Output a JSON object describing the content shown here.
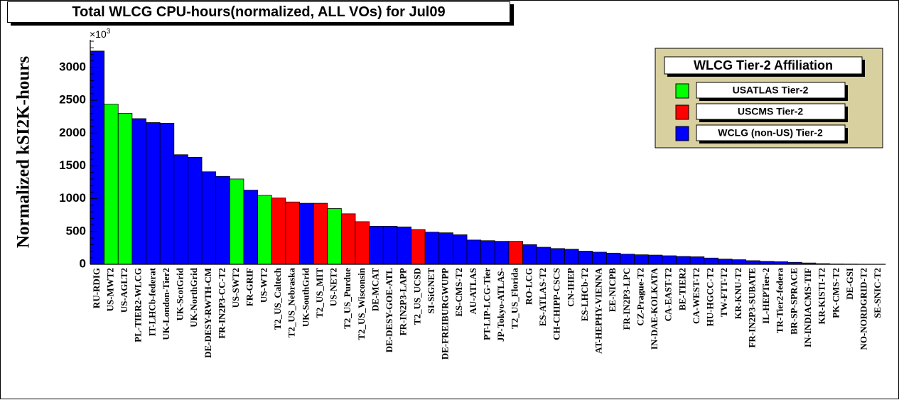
{
  "chart_data": {
    "type": "bar",
    "title": "Total WLCG CPU-hours(normalized, ALL VOs) for Jul09",
    "ylabel": "Normalized kSI2K-hours",
    "y_multiplier_base": "×10",
    "y_multiplier_exp": "3",
    "ylim": [
      0,
      3400
    ],
    "yticks": [
      0,
      500,
      1000,
      1500,
      2000,
      2500,
      3000
    ],
    "grid": false,
    "legend": {
      "title": "WLCG Tier-2 Affiliation",
      "placement": "top-right",
      "entries": [
        {
          "key": "atlas",
          "label": "USATLAS Tier-2",
          "color": "#00ff00"
        },
        {
          "key": "cms",
          "label": "USCMS Tier-2",
          "color": "#ff0000"
        },
        {
          "key": "wlcg",
          "label": "WCLG (non-US) Tier-2",
          "color": "#0000ff"
        }
      ]
    },
    "colors": {
      "atlas": "#00ff00",
      "cms": "#ff0000",
      "wlcg": "#0000ff",
      "background": "#ffffff",
      "legend_bg": "#d9d0a0"
    },
    "bars": [
      {
        "label": "RU-RDIG",
        "value": 3250,
        "group": "wlcg"
      },
      {
        "label": "US-MWT2",
        "value": 2440,
        "group": "atlas"
      },
      {
        "label": "US-AGLT2",
        "value": 2300,
        "group": "atlas"
      },
      {
        "label": "PL-TIER2-WLCG",
        "value": 2220,
        "group": "wlcg"
      },
      {
        "label": "IT-LHCb-federat",
        "value": 2160,
        "group": "wlcg"
      },
      {
        "label": "UK-London-Tier2",
        "value": 2150,
        "group": "wlcg"
      },
      {
        "label": "UK-ScotGrid",
        "value": 1670,
        "group": "wlcg"
      },
      {
        "label": "UK-NorthGrid",
        "value": 1630,
        "group": "wlcg"
      },
      {
        "label": "DE-DESY-RWTH-CM",
        "value": 1410,
        "group": "wlcg"
      },
      {
        "label": "FR-IN2P3-CC-T2",
        "value": 1340,
        "group": "wlcg"
      },
      {
        "label": "US-SWT2",
        "value": 1300,
        "group": "atlas"
      },
      {
        "label": "FR-GRIF",
        "value": 1130,
        "group": "wlcg"
      },
      {
        "label": "US-WT2",
        "value": 1050,
        "group": "atlas"
      },
      {
        "label": "T2_US_Caltech",
        "value": 1010,
        "group": "cms"
      },
      {
        "label": "T2_US_Nebraska",
        "value": 950,
        "group": "cms"
      },
      {
        "label": "UK-SouthGrid",
        "value": 930,
        "group": "wlcg"
      },
      {
        "label": "T2_US_MIT",
        "value": 930,
        "group": "cms"
      },
      {
        "label": "US-NET2",
        "value": 850,
        "group": "atlas"
      },
      {
        "label": "T2_US_Purdue",
        "value": 770,
        "group": "cms"
      },
      {
        "label": "T2_US_Wisconsin",
        "value": 650,
        "group": "cms"
      },
      {
        "label": "DE-MCAT",
        "value": 580,
        "group": "wlcg"
      },
      {
        "label": "DE-DESY-GOE-ATL",
        "value": 580,
        "group": "wlcg"
      },
      {
        "label": "FR-IN2P3-LAPP",
        "value": 570,
        "group": "wlcg"
      },
      {
        "label": "T2_US_UCSD",
        "value": 530,
        "group": "cms"
      },
      {
        "label": "SI-SiGNET",
        "value": 490,
        "group": "wlcg"
      },
      {
        "label": "DE-FREIBURGWUPP",
        "value": 480,
        "group": "wlcg"
      },
      {
        "label": "ES-CMS-T2",
        "value": 450,
        "group": "wlcg"
      },
      {
        "label": "AU-ATLAS",
        "value": 370,
        "group": "wlcg"
      },
      {
        "label": "PT-LIP-LCG-Tier",
        "value": 360,
        "group": "wlcg"
      },
      {
        "label": "JP-Tokyo-ATLAS-",
        "value": 350,
        "group": "wlcg"
      },
      {
        "label": "T2_US_Florida",
        "value": 350,
        "group": "cms"
      },
      {
        "label": "RO-LCG",
        "value": 300,
        "group": "wlcg"
      },
      {
        "label": "ES-ATLAS-T2",
        "value": 260,
        "group": "wlcg"
      },
      {
        "label": "CH-CHIPP-CSCS",
        "value": 240,
        "group": "wlcg"
      },
      {
        "label": "CN-IHEP",
        "value": 230,
        "group": "wlcg"
      },
      {
        "label": "ES-LHCb-T2",
        "value": 200,
        "group": "wlcg"
      },
      {
        "label": "AT-HEPHY-VIENNA",
        "value": 185,
        "group": "wlcg"
      },
      {
        "label": "EE-NICPB",
        "value": 170,
        "group": "wlcg"
      },
      {
        "label": "FR-IN2P3-LPC",
        "value": 155,
        "group": "wlcg"
      },
      {
        "label": "CZ-Prague-T2",
        "value": 145,
        "group": "wlcg"
      },
      {
        "label": "IN-DAE-KOLKATA",
        "value": 140,
        "group": "wlcg"
      },
      {
        "label": "CA-EAST-T2",
        "value": 130,
        "group": "wlcg"
      },
      {
        "label": "BE-TIER2",
        "value": 120,
        "group": "wlcg"
      },
      {
        "label": "CA-WEST-T2",
        "value": 115,
        "group": "wlcg"
      },
      {
        "label": "HU-HGCC-T2",
        "value": 95,
        "group": "wlcg"
      },
      {
        "label": "TW-FTT-T2",
        "value": 80,
        "group": "wlcg"
      },
      {
        "label": "KR-KNU-T2",
        "value": 70,
        "group": "wlcg"
      },
      {
        "label": "FR-IN2P3-SUBATE",
        "value": 55,
        "group": "wlcg"
      },
      {
        "label": "IL-HEPTier-2",
        "value": 45,
        "group": "wlcg"
      },
      {
        "label": "TR-Tier2-federa",
        "value": 40,
        "group": "wlcg"
      },
      {
        "label": "BR-SP-SPRACE",
        "value": 30,
        "group": "wlcg"
      },
      {
        "label": "IN-INDIACMS-TIF",
        "value": 20,
        "group": "wlcg"
      },
      {
        "label": "KR-KISTI-T2",
        "value": 10,
        "group": "wlcg"
      },
      {
        "label": "PK-CMS-T2",
        "value": 5,
        "group": "wlcg"
      },
      {
        "label": "DE-GSI",
        "value": 3,
        "group": "wlcg"
      },
      {
        "label": "NO-NORDGRID-T2",
        "value": 1,
        "group": "wlcg"
      },
      {
        "label": "SE-SNIC-T2",
        "value": 1,
        "group": "wlcg"
      }
    ]
  }
}
